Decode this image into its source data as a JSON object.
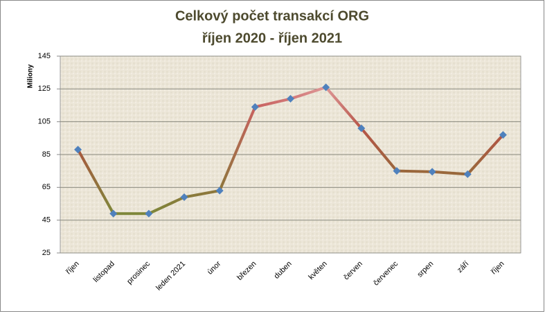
{
  "chart_data": {
    "type": "line",
    "title": [
      "Celkový počet transakcí ORG",
      "říjen 2020 - říjen 2021"
    ],
    "y_label": "Miliony",
    "categories": [
      "říjen",
      "listopad",
      "prosinec",
      "leden 2021",
      "únor",
      "březen",
      "duben",
      "květen",
      "červen",
      "červenec",
      "srpen",
      "září",
      "říjen"
    ],
    "values": [
      88,
      49,
      49,
      59,
      63,
      114,
      119,
      126,
      101,
      75,
      74.5,
      73,
      97
    ],
    "marker_color": "#4f81bd",
    "ylim": [
      25,
      145
    ],
    "yticks": [
      25,
      45,
      65,
      85,
      105,
      125,
      145
    ],
    "grid": true
  }
}
